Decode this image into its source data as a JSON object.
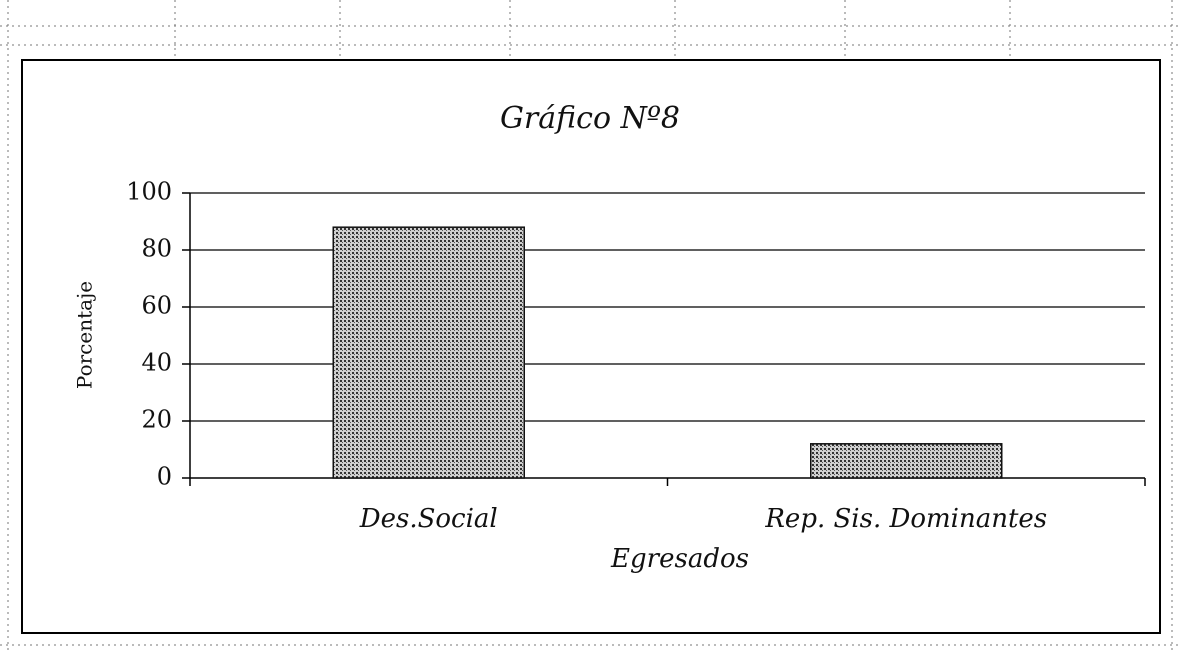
{
  "chart_data": {
    "type": "bar",
    "title": "Gráfico Nº8",
    "categories": [
      "Des.Social",
      "Rep. Sis. Dominantes"
    ],
    "values": [
      88,
      12
    ],
    "color": "#8a8a8a",
    "ylim": [
      0,
      100
    ],
    "yticks": [
      0,
      20,
      40,
      60,
      80,
      100
    ],
    "grid": true,
    "ylabel": "Porcentaje",
    "xlabel": "Egresados"
  }
}
